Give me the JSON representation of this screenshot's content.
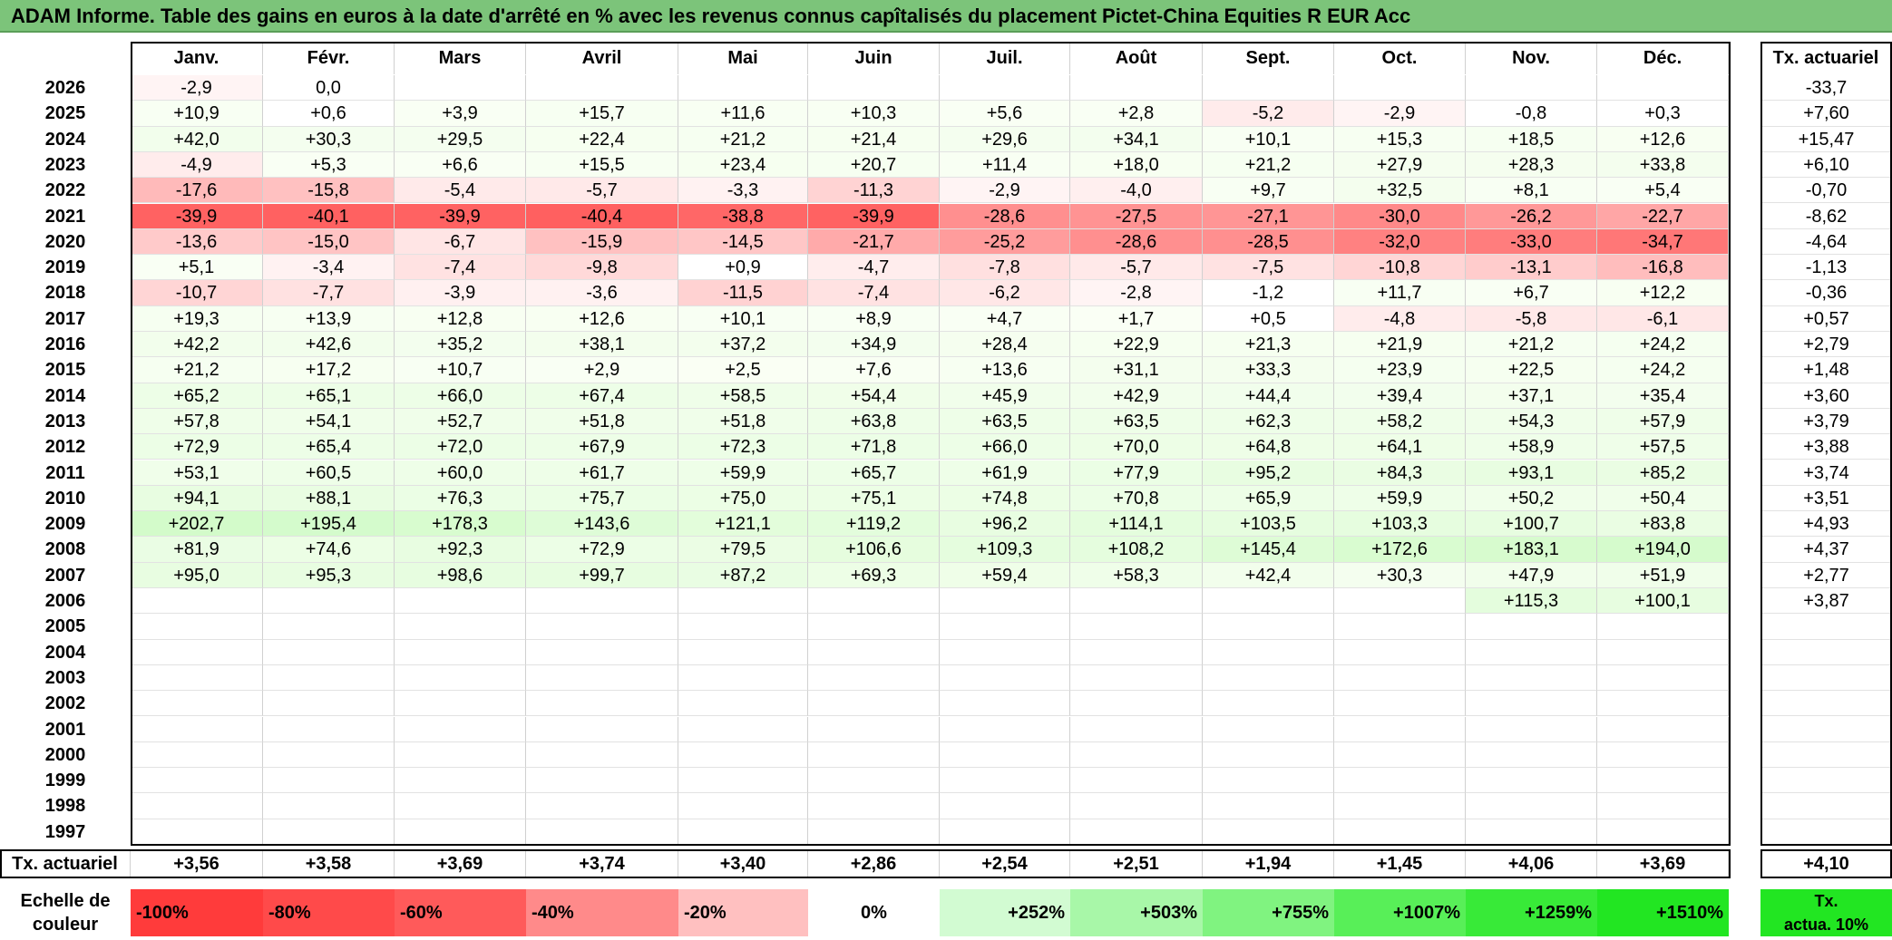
{
  "title": "ADAM Informe. Table des gains en euros à la date d'arrêté en % avec les revenus connus capîtalisés du placement Pictet-China Equities R EUR Acc",
  "months": [
    "Janv.",
    "Févr.",
    "Mars",
    "Avril",
    "Mai",
    "Juin",
    "Juil.",
    "Août",
    "Sept.",
    "Oct.",
    "Nov.",
    "Déc."
  ],
  "tx_header": "Tx. actuariel",
  "rows": [
    {
      "year": "2026",
      "v": [
        "-2,9",
        "0,0",
        "",
        "",
        "",
        "",
        "",
        "",
        "",
        "",
        "",
        ""
      ],
      "tx": "-33,7"
    },
    {
      "year": "2025",
      "v": [
        "+10,9",
        "+0,6",
        "+3,9",
        "+15,7",
        "+11,6",
        "+10,3",
        "+5,6",
        "+2,8",
        "-5,2",
        "-2,9",
        "-0,8",
        "+0,3"
      ],
      "tx": "+7,60"
    },
    {
      "year": "2024",
      "v": [
        "+42,0",
        "+30,3",
        "+29,5",
        "+22,4",
        "+21,2",
        "+21,4",
        "+29,6",
        "+34,1",
        "+10,1",
        "+15,3",
        "+18,5",
        "+12,6"
      ],
      "tx": "+15,47"
    },
    {
      "year": "2023",
      "v": [
        "-4,9",
        "+5,3",
        "+6,6",
        "+15,5",
        "+23,4",
        "+20,7",
        "+11,4",
        "+18,0",
        "+21,2",
        "+27,9",
        "+28,3",
        "+33,8"
      ],
      "tx": "+6,10"
    },
    {
      "year": "2022",
      "v": [
        "-17,6",
        "-15,8",
        "-5,4",
        "-5,7",
        "-3,3",
        "-11,3",
        "-2,9",
        "-4,0",
        "+9,7",
        "+32,5",
        "+8,1",
        "+5,4"
      ],
      "tx": "-0,70"
    },
    {
      "year": "2021",
      "v": [
        "-39,9",
        "-40,1",
        "-39,9",
        "-40,4",
        "-38,8",
        "-39,9",
        "-28,6",
        "-27,5",
        "-27,1",
        "-30,0",
        "-26,2",
        "-22,7"
      ],
      "tx": "-8,62"
    },
    {
      "year": "2020",
      "v": [
        "-13,6",
        "-15,0",
        "-6,7",
        "-15,9",
        "-14,5",
        "-21,7",
        "-25,2",
        "-28,6",
        "-28,5",
        "-32,0",
        "-33,0",
        "-34,7"
      ],
      "tx": "-4,64"
    },
    {
      "year": "2019",
      "v": [
        "+5,1",
        "-3,4",
        "-7,4",
        "-9,8",
        "+0,9",
        "-4,7",
        "-7,8",
        "-5,7",
        "-7,5",
        "-10,8",
        "-13,1",
        "-16,8"
      ],
      "tx": "-1,13"
    },
    {
      "year": "2018",
      "v": [
        "-10,7",
        "-7,7",
        "-3,9",
        "-3,6",
        "-11,5",
        "-7,4",
        "-6,2",
        "-2,8",
        "-1,2",
        "+11,7",
        "+6,7",
        "+12,2"
      ],
      "tx": "-0,36"
    },
    {
      "year": "2017",
      "v": [
        "+19,3",
        "+13,9",
        "+12,8",
        "+12,6",
        "+10,1",
        "+8,9",
        "+4,7",
        "+1,7",
        "+0,5",
        "-4,8",
        "-5,8",
        "-6,1"
      ],
      "tx": "+0,57"
    },
    {
      "year": "2016",
      "v": [
        "+42,2",
        "+42,6",
        "+35,2",
        "+38,1",
        "+37,2",
        "+34,9",
        "+28,4",
        "+22,9",
        "+21,3",
        "+21,9",
        "+21,2",
        "+24,2"
      ],
      "tx": "+2,79"
    },
    {
      "year": "2015",
      "v": [
        "+21,2",
        "+17,2",
        "+10,7",
        "+2,9",
        "+2,5",
        "+7,6",
        "+13,6",
        "+31,1",
        "+33,3",
        "+23,9",
        "+22,5",
        "+24,2"
      ],
      "tx": "+1,48"
    },
    {
      "year": "2014",
      "v": [
        "+65,2",
        "+65,1",
        "+66,0",
        "+67,4",
        "+58,5",
        "+54,4",
        "+45,9",
        "+42,9",
        "+44,4",
        "+39,4",
        "+37,1",
        "+35,4"
      ],
      "tx": "+3,60"
    },
    {
      "year": "2013",
      "v": [
        "+57,8",
        "+54,1",
        "+52,7",
        "+51,8",
        "+51,8",
        "+63,8",
        "+63,5",
        "+63,5",
        "+62,3",
        "+58,2",
        "+54,3",
        "+57,9"
      ],
      "tx": "+3,79"
    },
    {
      "year": "2012",
      "v": [
        "+72,9",
        "+65,4",
        "+72,0",
        "+67,9",
        "+72,3",
        "+71,8",
        "+66,0",
        "+70,0",
        "+64,8",
        "+64,1",
        "+58,9",
        "+57,5"
      ],
      "tx": "+3,88"
    },
    {
      "year": "2011",
      "v": [
        "+53,1",
        "+60,5",
        "+60,0",
        "+61,7",
        "+59,9",
        "+65,7",
        "+61,9",
        "+77,9",
        "+95,2",
        "+84,3",
        "+93,1",
        "+85,2"
      ],
      "tx": "+3,74"
    },
    {
      "year": "2010",
      "v": [
        "+94,1",
        "+88,1",
        "+76,3",
        "+75,7",
        "+75,0",
        "+75,1",
        "+74,8",
        "+70,8",
        "+65,9",
        "+59,9",
        "+50,2",
        "+50,4"
      ],
      "tx": "+3,51"
    },
    {
      "year": "2009",
      "v": [
        "+202,7",
        "+195,4",
        "+178,3",
        "+143,6",
        "+121,1",
        "+119,2",
        "+96,2",
        "+114,1",
        "+103,5",
        "+103,3",
        "+100,7",
        "+83,8"
      ],
      "tx": "+4,93"
    },
    {
      "year": "2008",
      "v": [
        "+81,9",
        "+74,6",
        "+92,3",
        "+72,9",
        "+79,5",
        "+106,6",
        "+109,3",
        "+108,2",
        "+145,4",
        "+172,6",
        "+183,1",
        "+194,0"
      ],
      "tx": "+4,37"
    },
    {
      "year": "2007",
      "v": [
        "+95,0",
        "+95,3",
        "+98,6",
        "+99,7",
        "+87,2",
        "+69,3",
        "+59,4",
        "+58,3",
        "+42,4",
        "+30,3",
        "+47,9",
        "+51,9"
      ],
      "tx": "+2,77"
    },
    {
      "year": "2006",
      "v": [
        "",
        "",
        "",
        "",
        "",
        "",
        "",
        "",
        "",
        "",
        "+115,3",
        "+100,1"
      ],
      "tx": "+3,87"
    },
    {
      "year": "2005",
      "v": [
        "",
        "",
        "",
        "",
        "",
        "",
        "",
        "",
        "",
        "",
        "",
        ""
      ],
      "tx": ""
    },
    {
      "year": "2004",
      "v": [
        "",
        "",
        "",
        "",
        "",
        "",
        "",
        "",
        "",
        "",
        "",
        ""
      ],
      "tx": ""
    },
    {
      "year": "2003",
      "v": [
        "",
        "",
        "",
        "",
        "",
        "",
        "",
        "",
        "",
        "",
        "",
        ""
      ],
      "tx": ""
    },
    {
      "year": "2002",
      "v": [
        "",
        "",
        "",
        "",
        "",
        "",
        "",
        "",
        "",
        "",
        "",
        ""
      ],
      "tx": ""
    },
    {
      "year": "2001",
      "v": [
        "",
        "",
        "",
        "",
        "",
        "",
        "",
        "",
        "",
        "",
        "",
        ""
      ],
      "tx": ""
    },
    {
      "year": "2000",
      "v": [
        "",
        "",
        "",
        "",
        "",
        "",
        "",
        "",
        "",
        "",
        "",
        ""
      ],
      "tx": ""
    },
    {
      "year": "1999",
      "v": [
        "",
        "",
        "",
        "",
        "",
        "",
        "",
        "",
        "",
        "",
        "",
        ""
      ],
      "tx": ""
    },
    {
      "year": "1998",
      "v": [
        "",
        "",
        "",
        "",
        "",
        "",
        "",
        "",
        "",
        "",
        "",
        ""
      ],
      "tx": ""
    },
    {
      "year": "1997",
      "v": [
        "",
        "",
        "",
        "",
        "",
        "",
        "",
        "",
        "",
        "",
        "",
        ""
      ],
      "tx": ""
    }
  ],
  "footer": {
    "label": "Tx. actuariel",
    "values": [
      "+3,56",
      "+3,58",
      "+3,69",
      "+3,74",
      "+3,40",
      "+2,86",
      "+2,54",
      "+2,51",
      "+1,94",
      "+1,45",
      "+4,06",
      "+3,69"
    ],
    "tx": "+4,10"
  },
  "scale": {
    "label_line1": "Echelle de",
    "label_line2": "couleur",
    "items": [
      {
        "text": "-100%",
        "color": "#ff3b3b",
        "align": "left"
      },
      {
        "text": "-80%",
        "color": "#ff4a4a",
        "align": "left"
      },
      {
        "text": "-60%",
        "color": "#ff5a5a",
        "align": "left"
      },
      {
        "text": "-40%",
        "color": "#ff8a8a",
        "align": "left"
      },
      {
        "text": "-20%",
        "color": "#ffc0c0",
        "align": "left"
      },
      {
        "text": "0%",
        "color": "#ffffff",
        "align": "center"
      },
      {
        "text": "+252%",
        "color": "#d2fbd2",
        "align": "right"
      },
      {
        "text": "+503%",
        "color": "#a8f7a8",
        "align": "right"
      },
      {
        "text": "+755%",
        "color": "#80f380",
        "align": "right"
      },
      {
        "text": "+1007%",
        "color": "#58ef58",
        "align": "right"
      },
      {
        "text": "+1259%",
        "color": "#38ea38",
        "align": "right"
      },
      {
        "text": "+1510%",
        "color": "#22e622",
        "align": "right"
      }
    ],
    "tx_line1": "Tx.",
    "tx_line2": "actua. 10%",
    "tx_color": "#22e622"
  }
}
